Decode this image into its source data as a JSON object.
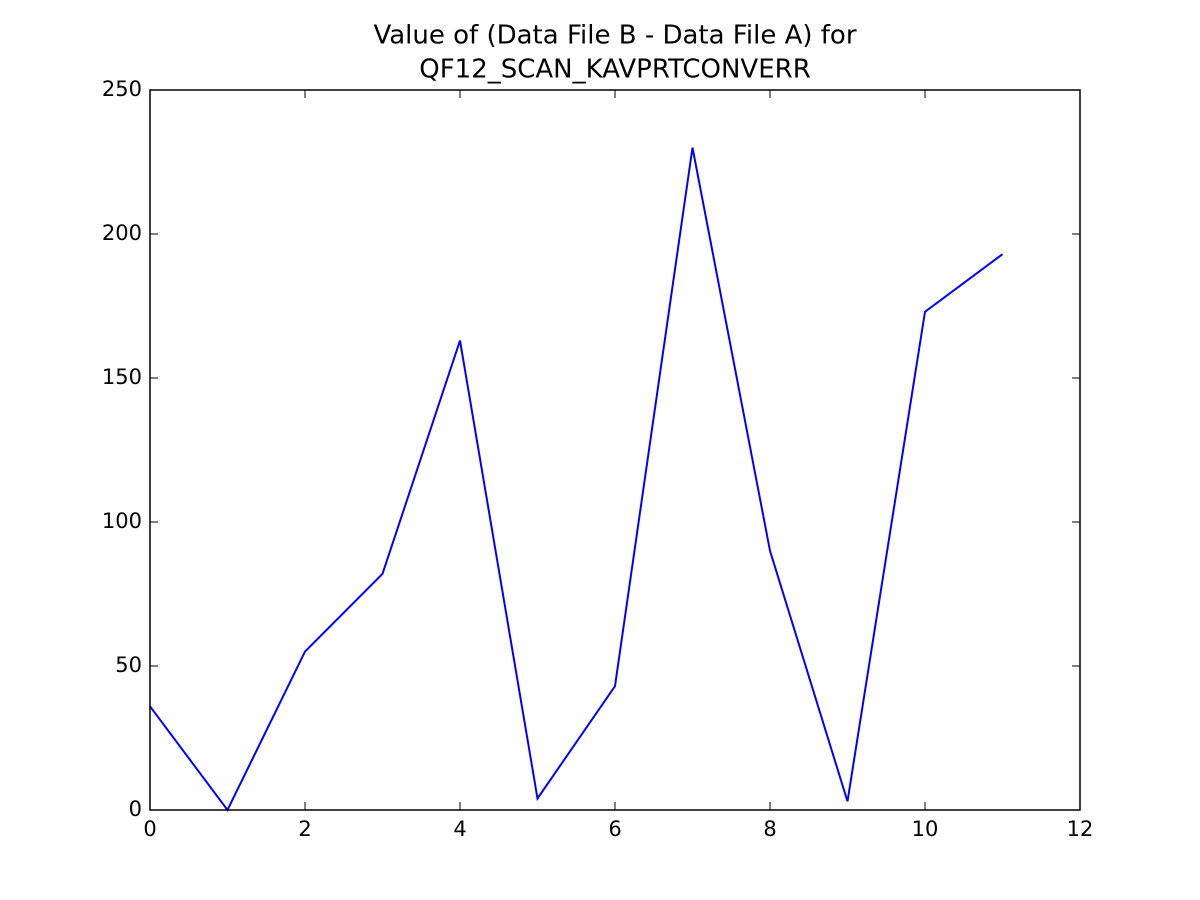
{
  "chart_data": {
    "type": "line",
    "title": [
      "Value of (Data File B - Data File A) for",
      "QF12_SCAN_KAVPRTCONVERR"
    ],
    "x": [
      0,
      1,
      2,
      3,
      4,
      5,
      6,
      7,
      8,
      9,
      10,
      11
    ],
    "series": [
      {
        "color": "#0000ff",
        "values": [
          36,
          0,
          55,
          82,
          163,
          4,
          43,
          230,
          90,
          3,
          173,
          193
        ]
      }
    ],
    "xlim": [
      0,
      12
    ],
    "xticks": [
      0,
      2,
      4,
      6,
      8,
      10,
      12
    ],
    "ylim": [
      0,
      250
    ],
    "yticks": [
      0,
      50,
      100,
      150,
      200,
      250
    ],
    "grid": false
  }
}
